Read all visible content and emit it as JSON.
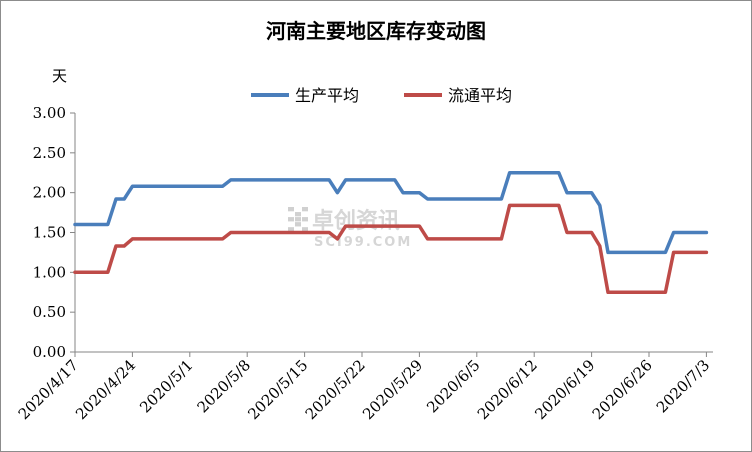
{
  "chart_data": {
    "type": "line",
    "title": "河南主要地区库存变动图",
    "ylabel": "天",
    "xlabel": "",
    "ylim": [
      0,
      3
    ],
    "y_ticks": [
      "0.00",
      "0.50",
      "1.00",
      "1.50",
      "2.00",
      "2.50",
      "3.00"
    ],
    "y_tick_values": [
      0,
      0.5,
      1.0,
      1.5,
      2.0,
      2.5,
      3.0
    ],
    "x_tick_labels": [
      "2020/4/17",
      "2020/4/24",
      "2020/5/1",
      "2020/5/8",
      "2020/5/15",
      "2020/5/22",
      "2020/5/29",
      "2020/6/5",
      "2020/6/12",
      "2020/6/19",
      "2020/6/26",
      "2020/7/3"
    ],
    "x": [
      "2020/4/17",
      "2020/4/21",
      "2020/4/22",
      "2020/4/23",
      "2020/4/24",
      "2020/5/5",
      "2020/5/6",
      "2020/5/18",
      "2020/5/19",
      "2020/5/20",
      "2020/5/26",
      "2020/5/27",
      "2020/5/29",
      "2020/5/30",
      "2020/6/8",
      "2020/6/9",
      "2020/6/10",
      "2020/6/15",
      "2020/6/16",
      "2020/6/19",
      "2020/6/20",
      "2020/6/21",
      "2020/6/28",
      "2020/6/29",
      "2020/7/3"
    ],
    "series": [
      {
        "name": "生产平均",
        "color": "#4a7ebb",
        "values": [
          1.6,
          1.6,
          1.92,
          1.92,
          2.08,
          2.08,
          2.16,
          2.16,
          2.0,
          2.16,
          2.16,
          2.0,
          2.0,
          1.92,
          1.92,
          2.25,
          2.25,
          2.25,
          2.0,
          2.0,
          1.84,
          1.25,
          1.25,
          1.5,
          1.5
        ]
      },
      {
        "name": "流通平均",
        "color": "#be4b48",
        "values": [
          1.0,
          1.0,
          1.33,
          1.33,
          1.42,
          1.42,
          1.5,
          1.5,
          1.42,
          1.58,
          1.58,
          1.58,
          1.58,
          1.42,
          1.42,
          1.84,
          1.84,
          1.84,
          1.5,
          1.5,
          1.33,
          0.75,
          0.75,
          1.25,
          1.25
        ]
      }
    ],
    "legend_position": "top",
    "grid": false,
    "watermark": {
      "brand_cn": "卓创资讯",
      "brand_en": "SCI99.COM"
    }
  }
}
